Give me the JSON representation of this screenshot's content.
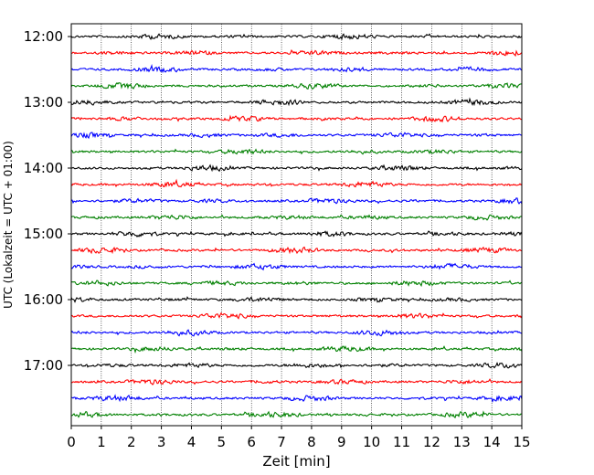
{
  "chart_data": {
    "type": "line",
    "title": "",
    "xlabel": "Zeit  [min]",
    "ylabel": "UTC (Lokalzeit = UTC + 01:00)",
    "xlim": [
      0,
      15
    ],
    "xticks": [
      0,
      1,
      2,
      3,
      4,
      5,
      6,
      7,
      8,
      9,
      10,
      11,
      12,
      13,
      14,
      15
    ],
    "xgrid": true,
    "ytick_labels": [
      "12:00",
      "13:00",
      "14:00",
      "15:00",
      "16:00",
      "17:00"
    ],
    "trace_start": "12:00",
    "trace_interval_min": 15,
    "trace_count": 24,
    "trace_colors": [
      "#000000",
      "#ff0000",
      "#0000ff",
      "#008000"
    ],
    "signal": "seismogram helicorder traces (low-amplitude noise)"
  }
}
